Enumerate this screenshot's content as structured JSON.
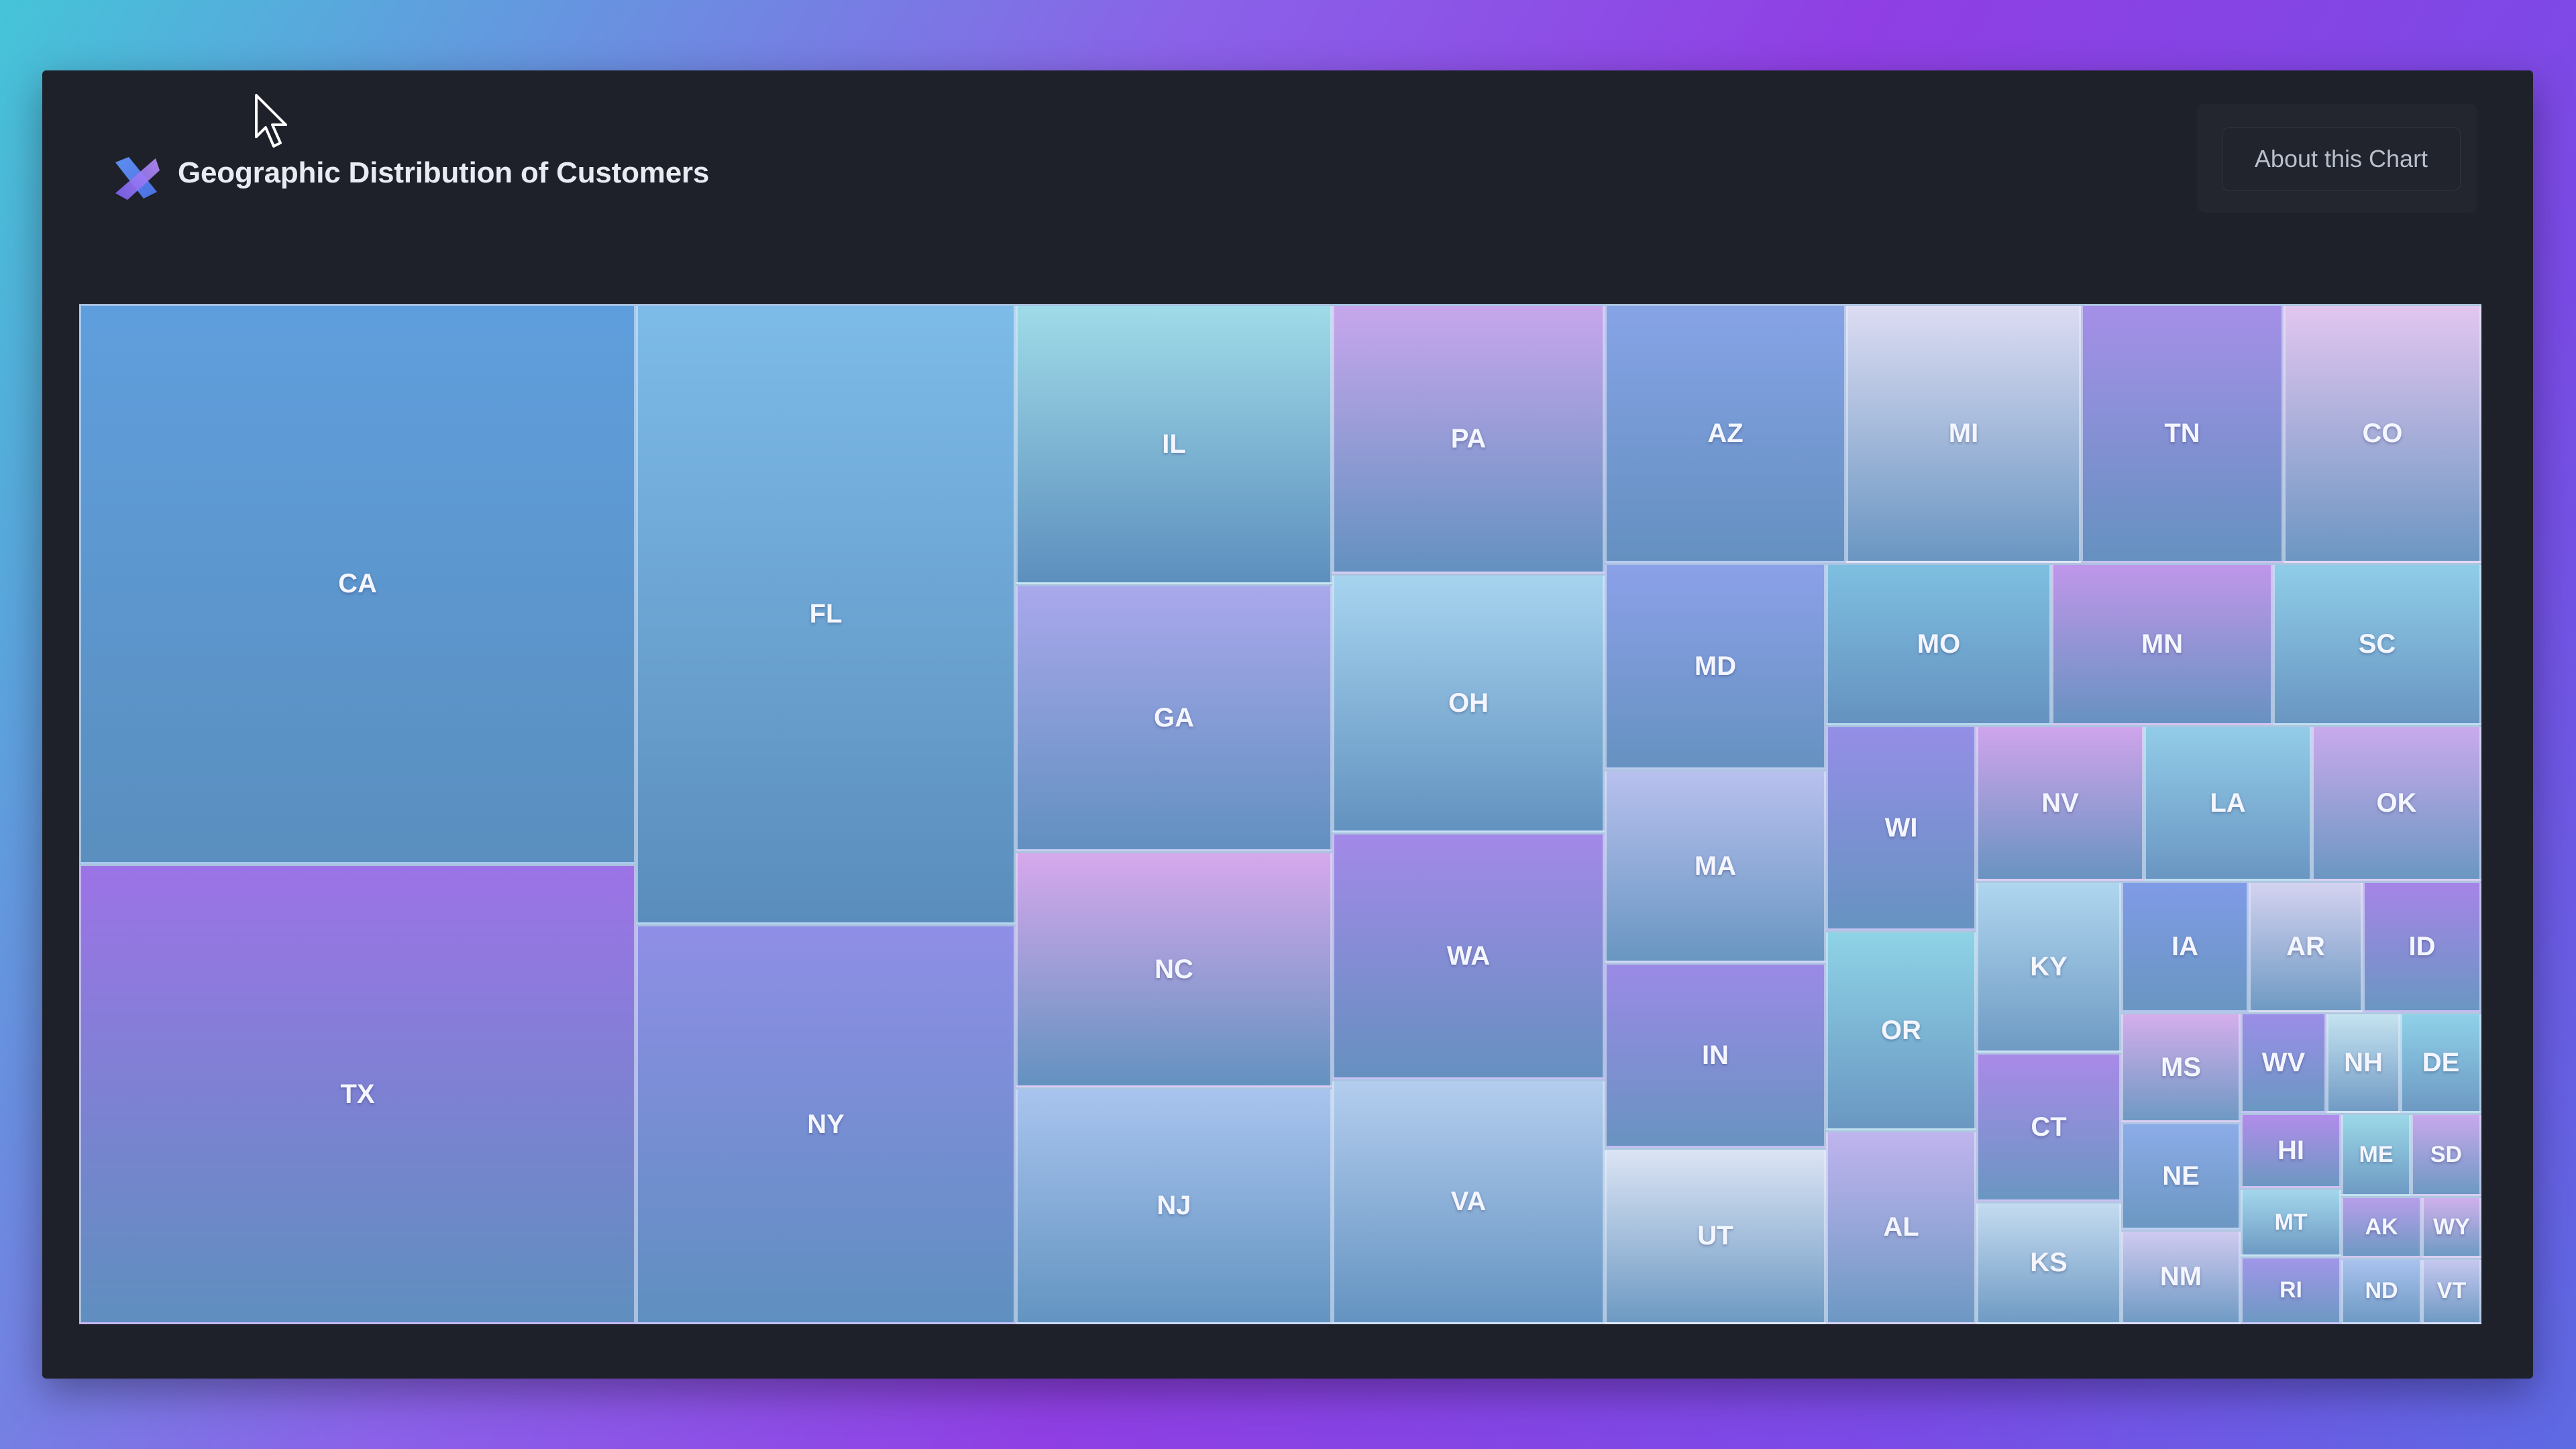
{
  "header": {
    "title": "Geographic Distribution of Customers",
    "about_label": "About this Chart",
    "logo_icon": "x-logo-icon"
  },
  "chart_data": {
    "type": "treemap",
    "title": "Geographic Distribution of Customers",
    "tiles": [
      {
        "label": "CA",
        "c1": "#5f9edd",
        "c2": "#5a8fbf"
      },
      {
        "label": "TX",
        "c1": "#9c73e6",
        "c2": "#5f8fbf"
      },
      {
        "label": "FL",
        "c1": "#7dbbe9",
        "c2": "#5a8dbb"
      },
      {
        "label": "NY",
        "c1": "#8f8ee6",
        "c2": "#5f8fc0"
      },
      {
        "label": "IL",
        "c1": "#9fdbe8",
        "c2": "#5d8fbe"
      },
      {
        "label": "GA",
        "c1": "#a9a8ec",
        "c2": "#6290c0"
      },
      {
        "label": "NC",
        "c1": "#d6a8ec",
        "c2": "#6392c0"
      },
      {
        "label": "NJ",
        "c1": "#a8c4ee",
        "c2": "#6394c1"
      },
      {
        "label": "PA",
        "c1": "#c7a6ec",
        "c2": "#6391c0"
      },
      {
        "label": "OH",
        "c1": "#a6d4ef",
        "c2": "#6392c0"
      },
      {
        "label": "WA",
        "c1": "#a289e8",
        "c2": "#6690c0"
      },
      {
        "label": "VA",
        "c1": "#b3cdee",
        "c2": "#6493c1"
      },
      {
        "label": "AZ",
        "c1": "#86a3e6",
        "c2": "#6490c0"
      },
      {
        "label": "MI",
        "c1": "#dcdcf2",
        "c2": "#6a96c2"
      },
      {
        "label": "TN",
        "c1": "#a58fe8",
        "c2": "#6591c0"
      },
      {
        "label": "CO",
        "c1": "#e2c6f0",
        "c2": "#6c96c2"
      },
      {
        "label": "MD",
        "c1": "#8ba0e8",
        "c2": "#6692c1"
      },
      {
        "label": "MO",
        "c1": "#7ebfe0",
        "c2": "#6592c0"
      },
      {
        "label": "MN",
        "c1": "#c096ea",
        "c2": "#6792c1"
      },
      {
        "label": "SC",
        "c1": "#8fcde8",
        "c2": "#6996c2"
      },
      {
        "label": "MA",
        "c1": "#b8c0ee",
        "c2": "#6996c2"
      },
      {
        "label": "WI",
        "c1": "#948ee6",
        "c2": "#6693c1"
      },
      {
        "label": "NV",
        "c1": "#cfa4ec",
        "c2": "#6993c1"
      },
      {
        "label": "LA",
        "c1": "#92cce8",
        "c2": "#6a96c2"
      },
      {
        "label": "OK",
        "c1": "#c9aaec",
        "c2": "#6b97c2"
      },
      {
        "label": "IN",
        "c1": "#9a8ae6",
        "c2": "#6993c1"
      },
      {
        "label": "UT",
        "c1": "#dbe4f4",
        "c2": "#6e9ac3"
      },
      {
        "label": "OR",
        "c1": "#8ed3e6",
        "c2": "#6a97c2"
      },
      {
        "label": "AL",
        "c1": "#c0b4ee",
        "c2": "#6d98c3"
      },
      {
        "label": "KY",
        "c1": "#afd6ef",
        "c2": "#6f9ac3"
      },
      {
        "label": "IA",
        "c1": "#7f9be6",
        "c2": "#6a96c2"
      },
      {
        "label": "AR",
        "c1": "#d4d2f0",
        "c2": "#6f9ac3"
      },
      {
        "label": "ID",
        "c1": "#a684e8",
        "c2": "#6a96c2"
      },
      {
        "label": "CT",
        "c1": "#a98ae8",
        "c2": "#6a96c2"
      },
      {
        "label": "KS",
        "c1": "#c4dbf0",
        "c2": "#709bc4"
      },
      {
        "label": "MS",
        "c1": "#d4aeec",
        "c2": "#6e99c3"
      },
      {
        "label": "WV",
        "c1": "#9b8ee8",
        "c2": "#6b97c2"
      },
      {
        "label": "NH",
        "c1": "#c5e3f0",
        "c2": "#719bc4"
      },
      {
        "label": "DE",
        "c1": "#8fd1e8",
        "c2": "#6d99c3"
      },
      {
        "label": "NE",
        "c1": "#8cace8",
        "c2": "#6b97c2"
      },
      {
        "label": "HI",
        "c1": "#b18cea",
        "c2": "#6c98c2"
      },
      {
        "label": "ME",
        "c1": "#9bd8e8",
        "c2": "#6e9ac3"
      },
      {
        "label": "SD",
        "c1": "#c8a8ec",
        "c2": "#6d99c3"
      },
      {
        "label": "NM",
        "c1": "#cfcaf0",
        "c2": "#709bc4"
      },
      {
        "label": "MT",
        "c1": "#a3d7ec",
        "c2": "#6e9ac3"
      },
      {
        "label": "AK",
        "c1": "#b79eea",
        "c2": "#6d99c3"
      },
      {
        "label": "WY",
        "c1": "#d0b0ec",
        "c2": "#6e9ac3"
      },
      {
        "label": "RI",
        "c1": "#a096e8",
        "c2": "#6d99c3"
      },
      {
        "label": "ND",
        "c1": "#a9c2ee",
        "c2": "#6e9ac3"
      },
      {
        "label": "VT",
        "c1": "#c6c8f0",
        "c2": "#6f9ac3"
      }
    ]
  }
}
